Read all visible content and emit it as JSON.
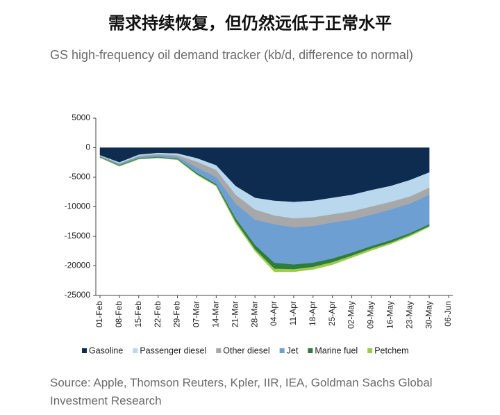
{
  "chart_data": {
    "type": "area",
    "title": "需求持续恢复，但仍然远低于正常水平",
    "subtitle": "GS high-frequency oil demand tracker (kb/d, difference to normal)",
    "source": "Source: Apple, Thomson Reuters, Kpler, IIR, IEA, Goldman Sachs Global Investment Research",
    "stacked": true,
    "categories": [
      "01-Feb",
      "08-Feb",
      "15-Feb",
      "22-Feb",
      "29-Feb",
      "07-Mar",
      "14-Mar",
      "21-Mar",
      "28-Mar",
      "04-Apr",
      "11-Apr",
      "18-Apr",
      "25-Apr",
      "02-May",
      "09-May",
      "16-May",
      "23-May",
      "30-May",
      "06-Jun"
    ],
    "series": [
      {
        "name": "Gasoline",
        "color": "#0e2b50",
        "values": [
          -1300,
          -2500,
          -1200,
          -900,
          -1000,
          -1800,
          -3000,
          -6500,
          -8500,
          -9000,
          -9200,
          -9000,
          -8500,
          -8000,
          -7200,
          -6500,
          -5500,
          -4200,
          null
        ]
      },
      {
        "name": "Passenger diesel",
        "color": "#b9d8ee",
        "values": [
          -100,
          -200,
          -200,
          -200,
          -300,
          -600,
          -800,
          -1500,
          -2000,
          -2500,
          -2800,
          -2800,
          -2800,
          -2800,
          -2800,
          -2700,
          -2800,
          -2600,
          null
        ]
      },
      {
        "name": "Other diesel",
        "color": "#a8a8a8",
        "values": [
          -100,
          -100,
          -200,
          -200,
          -300,
          -1000,
          -1200,
          -1500,
          -1700,
          -1500,
          -1500,
          -1500,
          -1400,
          -1400,
          -1400,
          -1300,
          -1200,
          -1200,
          null
        ]
      },
      {
        "name": "Jet",
        "color": "#6e9fd3",
        "values": [
          -100,
          -200,
          -200,
          -300,
          -300,
          -900,
          -1200,
          -2500,
          -4300,
          -6500,
          -6300,
          -6200,
          -6100,
          -5600,
          -5300,
          -5200,
          -5000,
          -5000,
          null
        ]
      },
      {
        "name": "Marine fuel",
        "color": "#2f7d3d",
        "values": [
          -50,
          -100,
          -100,
          -100,
          -100,
          -200,
          -200,
          -500,
          -700,
          -1000,
          -800,
          -700,
          -600,
          -500,
          -400,
          -400,
          -300,
          -300,
          null
        ]
      },
      {
        "name": "Petchem",
        "color": "#9ccc4a",
        "values": [
          -50,
          -50,
          -50,
          -50,
          -50,
          -100,
          -100,
          -300,
          -300,
          -500,
          -400,
          -400,
          -400,
          -300,
          -300,
          -200,
          -200,
          -100,
          null
        ]
      }
    ],
    "ylim": [
      -25000,
      5000
    ],
    "yticks": [
      -25000,
      -20000,
      -15000,
      -10000,
      -5000,
      0,
      5000
    ]
  }
}
